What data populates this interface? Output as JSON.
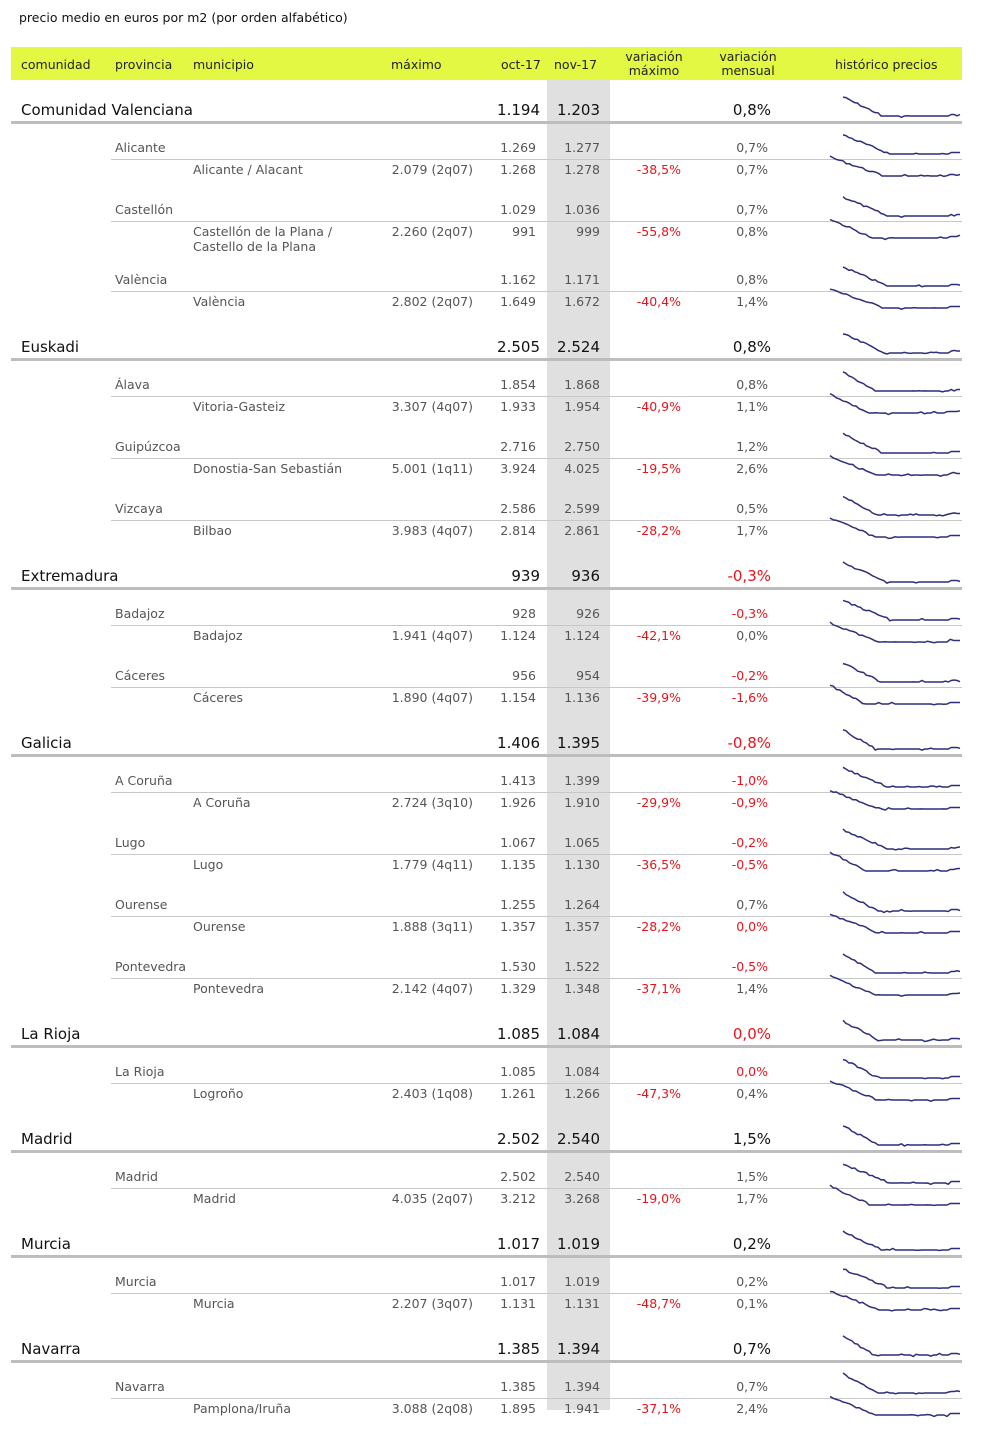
{
  "caption": "precio medio en euros por m2 (por orden alfabético)",
  "headers": {
    "comunidad": "comunidad",
    "provincia": "provincia",
    "municipio": "municipio",
    "maximo": "máximo",
    "oct": "oct-17",
    "nov": "nov-17",
    "var_max_1": "variación",
    "var_max_2": "máximo",
    "var_men_1": "variación",
    "var_men_2": "mensual",
    "historico": "histórico precios"
  },
  "colors": {
    "header_bg": "#e2f843",
    "negative": "#e8141c",
    "sparkline": "#2e2e7a",
    "highlight_column": "#e0e0e0"
  },
  "sparkline_icon": "price-history-sparkline",
  "comunidades": [
    {
      "name": "Comunidad Valenciana",
      "oct": "1.194",
      "nov": "1.203",
      "mensual": "0,8%",
      "provincias": [
        {
          "name": "Alicante",
          "oct": "1.269",
          "nov": "1.277",
          "mensual": "0,7%",
          "municipios": [
            {
              "name": "Alicante / Alacant",
              "maximo": "2.079 (2q07)",
              "oct": "1.268",
              "nov": "1.278",
              "var_max": "-38,5%",
              "mensual": "0,7%"
            }
          ]
        },
        {
          "name": "Castellón",
          "oct": "1.029",
          "nov": "1.036",
          "mensual": "0,7%",
          "municipios": [
            {
              "name": "Castellón de la Plana /",
              "name2": "Castello de la Plana",
              "maximo": "2.260 (2q07)",
              "oct": "991",
              "nov": "999",
              "var_max": "-55,8%",
              "mensual": "0,8%"
            }
          ]
        },
        {
          "name": "València",
          "oct": "1.162",
          "nov": "1.171",
          "mensual": "0,8%",
          "municipios": [
            {
              "name": "València",
              "maximo": "2.802 (2q07)",
              "oct": "1.649",
              "nov": "1.672",
              "var_max": "-40,4%",
              "mensual": "1,4%"
            }
          ]
        }
      ]
    },
    {
      "name": "Euskadi",
      "oct": "2.505",
      "nov": "2.524",
      "mensual": "0,8%",
      "provincias": [
        {
          "name": "Álava",
          "oct": "1.854",
          "nov": "1.868",
          "mensual": "0,8%",
          "municipios": [
            {
              "name": "Vitoria-Gasteiz",
              "maximo": "3.307 (4q07)",
              "oct": "1.933",
              "nov": "1.954",
              "var_max": "-40,9%",
              "mensual": "1,1%"
            }
          ]
        },
        {
          "name": "Guipúzcoa",
          "oct": "2.716",
          "nov": "2.750",
          "mensual": "1,2%",
          "municipios": [
            {
              "name": "Donostia-San Sebastián",
              "maximo": "5.001 (1q11)",
              "oct": "3.924",
              "nov": "4.025",
              "var_max": "-19,5%",
              "mensual": "2,6%"
            }
          ]
        },
        {
          "name": "Vizcaya",
          "oct": "2.586",
          "nov": "2.599",
          "mensual": "0,5%",
          "municipios": [
            {
              "name": "Bilbao",
              "maximo": "3.983 (4q07)",
              "oct": "2.814",
              "nov": "2.861",
              "var_max": "-28,2%",
              "mensual": "1,7%"
            }
          ]
        }
      ]
    },
    {
      "name": "Extremadura",
      "oct": "939",
      "nov": "936",
      "mensual": "-0,3%",
      "provincias": [
        {
          "name": "Badajoz",
          "oct": "928",
          "nov": "926",
          "mensual": "-0,3%",
          "municipios": [
            {
              "name": "Badajoz",
              "maximo": "1.941 (4q07)",
              "oct": "1.124",
              "nov": "1.124",
              "var_max": "-42,1%",
              "mensual": "0,0%"
            }
          ]
        },
        {
          "name": "Cáceres",
          "oct": "956",
          "nov": "954",
          "mensual": "-0,2%",
          "municipios": [
            {
              "name": "Cáceres",
              "maximo": "1.890 (4q07)",
              "oct": "1.154",
              "nov": "1.136",
              "var_max": "-39,9%",
              "mensual": "-1,6%"
            }
          ]
        }
      ]
    },
    {
      "name": "Galicia",
      "oct": "1.406",
      "nov": "1.395",
      "mensual": "-0,8%",
      "provincias": [
        {
          "name": "A Coruña",
          "oct": "1.413",
          "nov": "1.399",
          "mensual": "-1,0%",
          "municipios": [
            {
              "name": "A Coruña",
              "maximo": "2.724 (3q10)",
              "oct": "1.926",
              "nov": "1.910",
              "var_max": "-29,9%",
              "mensual": "-0,9%"
            }
          ]
        },
        {
          "name": "Lugo",
          "oct": "1.067",
          "nov": "1.065",
          "mensual": "-0,2%",
          "municipios": [
            {
              "name": "Lugo",
              "maximo": "1.779 (4q11)",
              "oct": "1.135",
              "nov": "1.130",
              "var_max": "-36,5%",
              "mensual": "-0,5%"
            }
          ]
        },
        {
          "name": "Ourense",
          "oct": "1.255",
          "nov": "1.264",
          "mensual": "0,7%",
          "municipios": [
            {
              "name": "Ourense",
              "maximo": "1.888 (3q11)",
              "oct": "1.357",
              "nov": "1.357",
              "var_max": "-28,2%",
              "mensual": "0,0%",
              "red": true
            }
          ]
        },
        {
          "name": "Pontevedra",
          "oct": "1.530",
          "nov": "1.522",
          "mensual": "-0,5%",
          "municipios": [
            {
              "name": "Pontevedra",
              "maximo": "2.142 (4q07)",
              "oct": "1.329",
              "nov": "1.348",
              "var_max": "-37,1%",
              "mensual": "1,4%"
            }
          ]
        }
      ]
    },
    {
      "name": "La Rioja",
      "oct": "1.085",
      "nov": "1.084",
      "mensual": "0,0%",
      "red": true,
      "provincias": [
        {
          "name": "La Rioja",
          "oct": "1.085",
          "nov": "1.084",
          "mensual": "0,0%",
          "red": true,
          "municipios": [
            {
              "name": "Logroño",
              "maximo": "2.403 (1q08)",
              "oct": "1.261",
              "nov": "1.266",
              "var_max": "-47,3%",
              "mensual": "0,4%"
            }
          ]
        }
      ]
    },
    {
      "name": "Madrid",
      "oct": "2.502",
      "nov": "2.540",
      "mensual": "1,5%",
      "provincias": [
        {
          "name": "Madrid",
          "oct": "2.502",
          "nov": "2.540",
          "mensual": "1,5%",
          "municipios": [
            {
              "name": "Madrid",
              "maximo": "4.035 (2q07)",
              "oct": "3.212",
              "nov": "3.268",
              "var_max": "-19,0%",
              "mensual": "1,7%"
            }
          ]
        }
      ]
    },
    {
      "name": "Murcia",
      "oct": "1.017",
      "nov": "1.019",
      "mensual": "0,2%",
      "provincias": [
        {
          "name": "Murcia",
          "oct": "1.017",
          "nov": "1.019",
          "mensual": "0,2%",
          "municipios": [
            {
              "name": "Murcia",
              "maximo": "2.207 (3q07)",
              "oct": "1.131",
              "nov": "1.131",
              "var_max": "-48,7%",
              "mensual": "0,1%"
            }
          ]
        }
      ]
    },
    {
      "name": "Navarra",
      "oct": "1.385",
      "nov": "1.394",
      "mensual": "0,7%",
      "provincias": [
        {
          "name": "Navarra",
          "oct": "1.385",
          "nov": "1.394",
          "mensual": "0,7%",
          "municipios": [
            {
              "name": "Pamplona/Iruña",
              "maximo": "3.088 (2q08)",
              "oct": "1.895",
              "nov": "1.941",
              "var_max": "-37,1%",
              "mensual": "2,4%"
            }
          ]
        }
      ]
    }
  ]
}
